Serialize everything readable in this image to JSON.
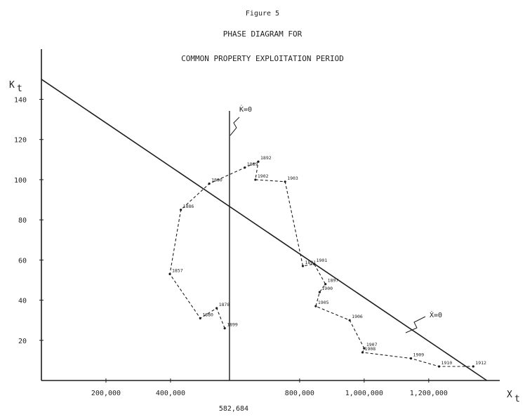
{
  "figure_label": "Figure 5",
  "title": "PHASE DIAGRAM FOR",
  "subtitle": "COMMON PROPERTY EXPLOITATION PERIOD",
  "chart_data": {
    "type": "line",
    "xlabel": "X",
    "xlabel_sub": "t",
    "ylabel": "K",
    "ylabel_sub": "t",
    "xlim": [
      0,
      1420000
    ],
    "ylim": [
      0,
      165
    ],
    "x_ticks": [
      {
        "value": 200000,
        "label": "200,000"
      },
      {
        "value": 400000,
        "label": "400,000"
      },
      {
        "value": 800000,
        "label": "800,000"
      },
      {
        "value": 1000000,
        "label": "1,000,000"
      },
      {
        "value": 1200000,
        "label": "1,200,000"
      }
    ],
    "y_ticks": [
      {
        "value": 20,
        "label": "20"
      },
      {
        "value": 40,
        "label": "40"
      },
      {
        "value": 60,
        "label": "60"
      },
      {
        "value": 80,
        "label": "80"
      },
      {
        "value": 100,
        "label": "100"
      },
      {
        "value": 120,
        "label": "120"
      },
      {
        "value": 140,
        "label": "140"
      }
    ],
    "k_isocline": {
      "x": 582684,
      "label": "K̇=0",
      "value_label": "582,684"
    },
    "x_isocline": {
      "points": [
        [
          0,
          150
        ],
        [
          1380000,
          0
        ]
      ],
      "label": "Ẋ=0"
    },
    "trajectory": [
      {
        "x": 568000,
        "y": 26,
        "label": "1899"
      },
      {
        "x": 543000,
        "y": 36,
        "label": "1878"
      },
      {
        "x": 492000,
        "y": 31,
        "label": "1880"
      },
      {
        "x": 398000,
        "y": 53,
        "label": "1857"
      },
      {
        "x": 432000,
        "y": 85,
        "label": "1886"
      },
      {
        "x": 520000,
        "y": 98,
        "label": "1890"
      },
      {
        "x": 630000,
        "y": 106,
        "label": "1889"
      },
      {
        "x": 672000,
        "y": 109,
        "label": "1892"
      },
      {
        "x": 663000,
        "y": 100,
        "label": "1902"
      },
      {
        "x": 755000,
        "y": 99,
        "label": "1903"
      },
      {
        "x": 810000,
        "y": 57,
        "label": "1891"
      },
      {
        "x": 845000,
        "y": 58,
        "label": "1901"
      },
      {
        "x": 880000,
        "y": 48,
        "label": "1897"
      },
      {
        "x": 862000,
        "y": 44,
        "label": "1900"
      },
      {
        "x": 850000,
        "y": 37,
        "label": "1905"
      },
      {
        "x": 955000,
        "y": 30,
        "label": "1906"
      },
      {
        "x": 1000000,
        "y": 16,
        "label": "1907"
      },
      {
        "x": 995000,
        "y": 14,
        "label": "1908"
      },
      {
        "x": 1145000,
        "y": 11,
        "label": "1909"
      },
      {
        "x": 1232000,
        "y": 7,
        "label": "1910"
      },
      {
        "x": 1338000,
        "y": 7,
        "label": "1912"
      }
    ]
  }
}
